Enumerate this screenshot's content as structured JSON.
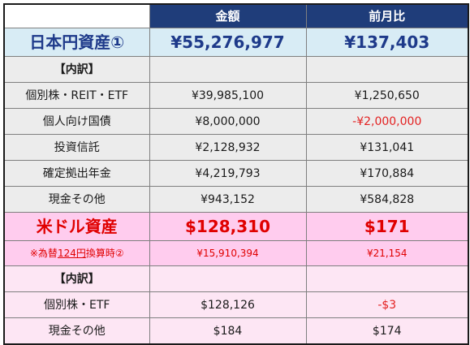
{
  "header": {
    "col_amount": "金額",
    "col_change": "前月比"
  },
  "jpy": {
    "title": "日本円資産①",
    "total": "¥55,276,977",
    "total_change": "¥137,403",
    "breakdown_label": "【内訳】",
    "rows": [
      {
        "label": "個別株・REIT・ETF",
        "amount": "¥39,985,100",
        "change": "¥1,250,650"
      },
      {
        "label": "個人向け国債",
        "amount": "¥8,000,000",
        "change": "-¥2,000,000"
      },
      {
        "label": "投資信託",
        "amount": "¥2,128,932",
        "change": "¥131,041"
      },
      {
        "label": "確定拠出年金",
        "amount": "¥4,219,793",
        "change": "¥170,884"
      },
      {
        "label": "現金その他",
        "amount": "¥943,152",
        "change": "¥584,828"
      }
    ]
  },
  "usd": {
    "title": "米ドル資産",
    "total": "$128,310",
    "total_change": "$171",
    "rate_note_prefix": "※為替",
    "rate_note_rate": "124円",
    "rate_note_suffix": "換算時②",
    "yen_amount": "¥15,910,394",
    "yen_change": "¥21,154",
    "breakdown_label": "【内訳】",
    "rows": [
      {
        "label": "個別株・ETF",
        "amount": "$128,126",
        "change": "-$3"
      },
      {
        "label": "現金その他",
        "amount": "$184",
        "change": "$174"
      }
    ]
  },
  "colors": {
    "header_bg": "#1f3d7a",
    "jpy_bg": "#d8ecf5",
    "usd_bg": "#ffccee",
    "negative": "#e32121"
  }
}
